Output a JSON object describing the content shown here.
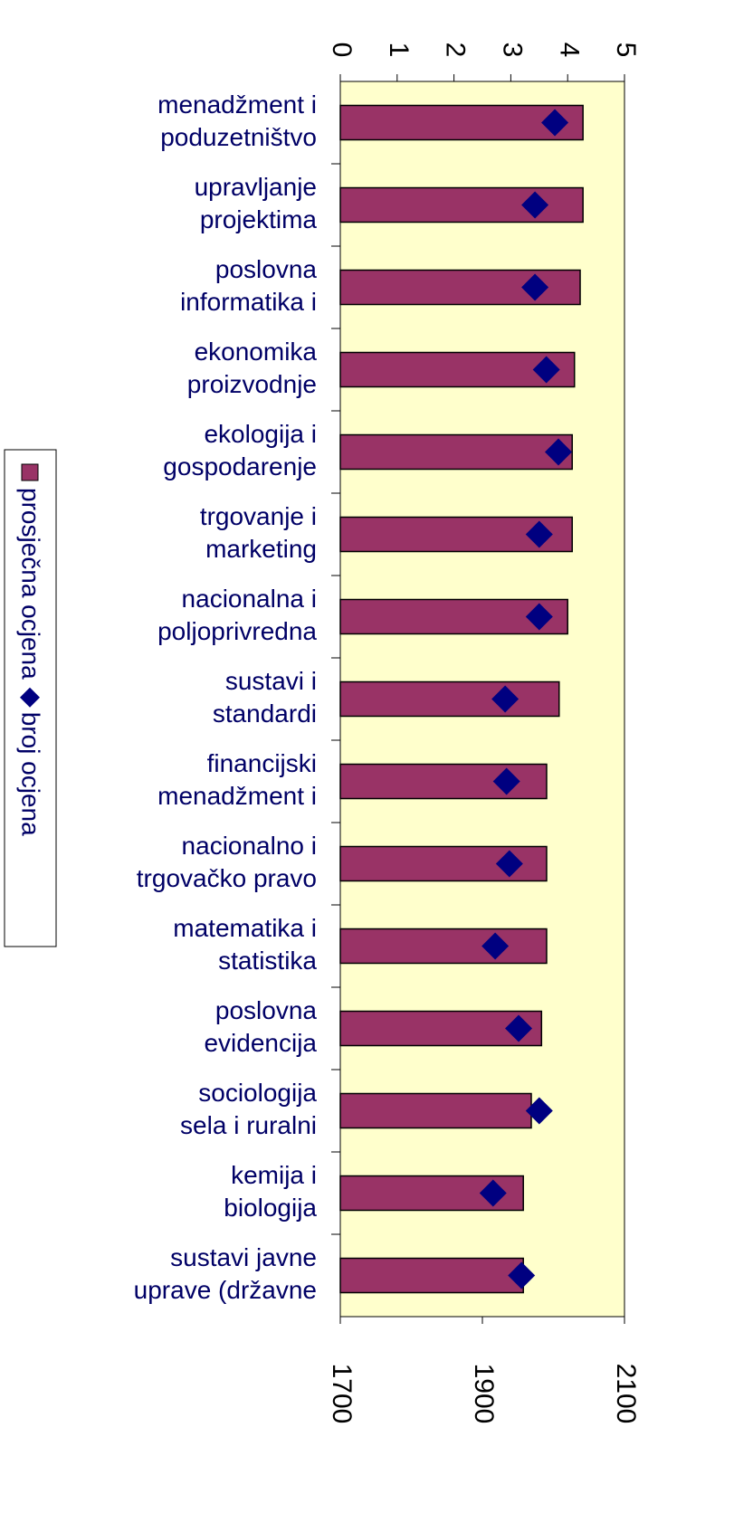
{
  "chart_data": {
    "type": "bar",
    "categories": [
      [
        "menadžment i",
        "poduzetništvo"
      ],
      [
        "upravljanje",
        "projektima"
      ],
      [
        "poslovna",
        "informatika i"
      ],
      [
        "ekonomika",
        "proizvodnje"
      ],
      [
        "ekologija i",
        "gospodarenje"
      ],
      [
        "trgovanje i",
        "marketing"
      ],
      [
        "nacionalna i",
        "poljoprivredna"
      ],
      [
        "sustavi i",
        "standardi"
      ],
      [
        "financijski",
        "menadžment i"
      ],
      [
        "nacionalno i",
        "trgovačko pravo"
      ],
      [
        "matematika i",
        "statistika"
      ],
      [
        "poslovna",
        "evidencija"
      ],
      [
        "sociologija",
        "sela i ruralni"
      ],
      [
        "kemija i",
        "biologija"
      ],
      [
        "sustavi javne",
        "uprave (državne"
      ]
    ],
    "series": [
      {
        "name": "prosječna ocjena",
        "color": "#993366",
        "values": [
          4.27,
          4.27,
          4.22,
          4.12,
          4.08,
          4.08,
          4.0,
          3.85,
          3.63,
          3.63,
          3.63,
          3.54,
          3.36,
          3.22,
          3.22
        ]
      },
      {
        "name": "broj ocjena",
        "color": "#000080",
        "axis": "y2",
        "values": [
          2002,
          1974,
          1974,
          1990,
          2007,
          1980,
          1980,
          1932,
          1934,
          1938,
          1918,
          1951,
          1980,
          1915,
          1955
        ]
      }
    ],
    "ylim": [
      0,
      5
    ],
    "yticks": [
      0,
      1,
      2,
      3,
      4,
      5
    ],
    "y2lim": [
      1700,
      2100
    ],
    "y2ticks": [
      1700,
      1900,
      2100
    ],
    "legend": "left"
  }
}
